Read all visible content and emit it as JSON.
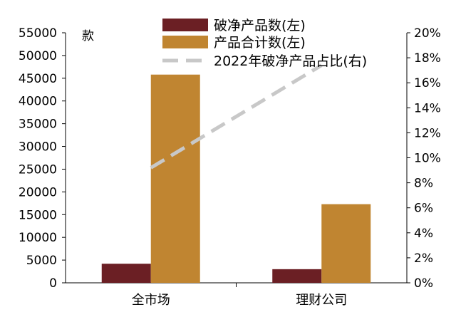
{
  "chart_data": {
    "type": "bar",
    "categories": [
      "全市场",
      "理财公司"
    ],
    "series": [
      {
        "name": "破净产品数(左)",
        "values": [
          4200,
          3000
        ],
        "color": "#6b1f24",
        "axis": "left"
      },
      {
        "name": "产品合计数(左)",
        "values": [
          45800,
          17300
        ],
        "color": "#c08531",
        "axis": "left"
      },
      {
        "name": "2022年破净产品占比(右)",
        "type": "line",
        "values": [
          9.2,
          17.4
        ],
        "color": "#c8c8c8",
        "dash": true,
        "axis": "right"
      }
    ],
    "ylabel": "款",
    "ylim": [
      0,
      55000
    ],
    "y_ticks": [
      "0",
      "5000",
      "10000",
      "15000",
      "20000",
      "25000",
      "30000",
      "35000",
      "40000",
      "45000",
      "50000",
      "55000"
    ],
    "y2lim": [
      0,
      20
    ],
    "y2_ticks": [
      "0%",
      "2%",
      "4%",
      "6%",
      "8%",
      "10%",
      "12%",
      "14%",
      "16%",
      "18%",
      "20%"
    ],
    "legend_position": "top-center",
    "grid": false
  }
}
